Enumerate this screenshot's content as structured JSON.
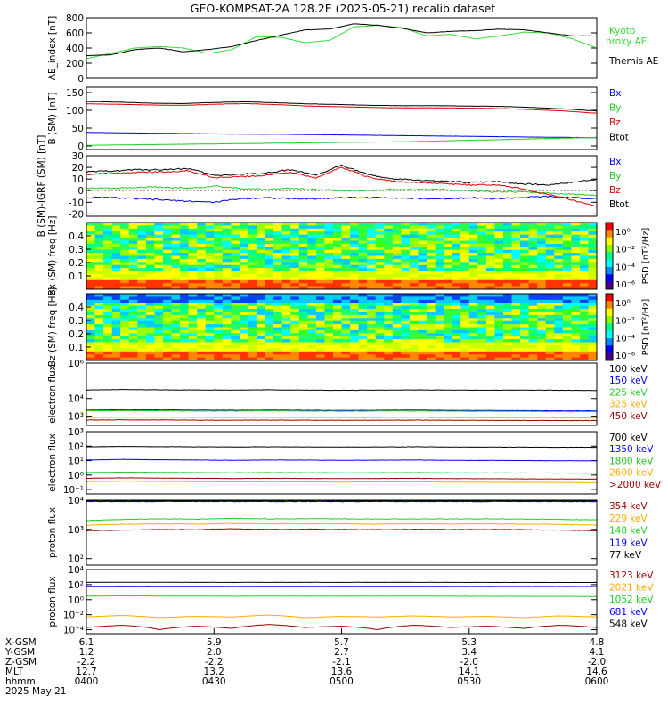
{
  "title": "GEO-KOMPSAT-2A 128.2E (2025-05-21) recalib dataset",
  "colors": {
    "black": "#000000",
    "blue": "#0000ff",
    "green": "#22cc22",
    "red": "#dd0000",
    "orange": "#ffaa00",
    "darkred": "#990000",
    "ae_green": "#33dd33"
  },
  "chart_data": [
    {
      "type": "line",
      "ylabel": "AE_index [nT]",
      "yticks": [
        "800",
        "600",
        "400",
        "200",
        "0"
      ],
      "ylim": [
        0,
        800
      ],
      "legend": [
        "Kyoto proxy AE",
        "Themis AE"
      ],
      "series": [
        {
          "name": "Kyoto proxy AE",
          "color": "ae_green",
          "values": [
            260,
            330,
            400,
            420,
            400,
            330,
            380,
            550,
            540,
            470,
            500,
            680,
            700,
            670,
            560,
            580,
            520,
            560,
            610,
            600,
            520,
            400
          ]
        },
        {
          "name": "Themis AE",
          "color": "black",
          "values": [
            300,
            310,
            380,
            400,
            350,
            380,
            420,
            500,
            570,
            640,
            650,
            720,
            700,
            660,
            600,
            620,
            630,
            650,
            640,
            600,
            560,
            560
          ]
        }
      ]
    },
    {
      "type": "line",
      "ylabel": "B (SM) [nT]",
      "yticks": [
        "150",
        "100",
        "50",
        "0"
      ],
      "ylim": [
        -10,
        165
      ],
      "legend": [
        "Bx",
        "By",
        "Bz",
        "Btot"
      ],
      "series": [
        {
          "name": "Bx",
          "color": "blue",
          "values": [
            38,
            37,
            36,
            35,
            34,
            33,
            33,
            32,
            31,
            30,
            29,
            28,
            27,
            26,
            25,
            24,
            23
          ]
        },
        {
          "name": "By",
          "color": "green",
          "values": [
            2,
            3,
            4,
            5,
            6,
            7,
            8,
            9,
            10,
            11,
            12,
            14,
            16,
            18,
            20,
            22,
            24
          ]
        },
        {
          "name": "Bz",
          "color": "red",
          "values": [
            118,
            117,
            115,
            114,
            117,
            119,
            116,
            112,
            110,
            108,
            107,
            107,
            106,
            105,
            102,
            98,
            92
          ]
        },
        {
          "name": "Btot",
          "color": "black",
          "values": [
            125,
            123,
            120,
            119,
            122,
            124,
            121,
            118,
            116,
            114,
            113,
            113,
            112,
            111,
            108,
            104,
            98
          ]
        }
      ]
    },
    {
      "type": "line",
      "ylabel": "B (SM)-IGRF (SM) [nT]",
      "yticks": [
        "30",
        "20",
        "10",
        "0",
        "-10",
        "-20"
      ],
      "ylim": [
        -22,
        30
      ],
      "legend": [
        "Bx",
        "By",
        "Bz",
        "Btot"
      ],
      "series": [
        {
          "name": "Bx",
          "color": "blue",
          "values": [
            -6,
            -6,
            -7,
            -8,
            -9,
            -10,
            -7,
            -6,
            -7,
            -7,
            -6,
            -6,
            -6,
            -7,
            -7,
            -6,
            -7,
            -6,
            -5,
            -6,
            -7
          ]
        },
        {
          "name": "By",
          "color": "green",
          "values": [
            2,
            2,
            3,
            3,
            2,
            4,
            2,
            1,
            2,
            1,
            0,
            0,
            1,
            1,
            1,
            0,
            -1,
            -1,
            -2,
            -3,
            -4
          ]
        },
        {
          "name": "Bz",
          "color": "red",
          "values": [
            14,
            15,
            16,
            16,
            17,
            11,
            12,
            13,
            16,
            11,
            20,
            12,
            8,
            7,
            6,
            5,
            5,
            2,
            -3,
            -8,
            -14
          ]
        },
        {
          "name": "Btot",
          "color": "black",
          "values": [
            16,
            17,
            18,
            18,
            19,
            13,
            14,
            15,
            18,
            13,
            22,
            14,
            10,
            9,
            8,
            7,
            8,
            6,
            5,
            7,
            10
          ]
        }
      ]
    },
    {
      "type": "heatmap",
      "ylabel": "Bx (SM) freq [Hz]",
      "yticks": [
        "0.4",
        "0.3",
        "0.2",
        "0.1"
      ],
      "ylim": [
        0,
        0.5
      ],
      "colorbar_label": "PSD [nT²/Hz]",
      "colorbar_ticks": [
        "10⁰",
        "10⁻²",
        "10⁻⁴",
        "10⁻⁶"
      ]
    },
    {
      "type": "heatmap",
      "ylabel": "Bz (SM) freq [Hz]",
      "yticks": [
        "0.4",
        "0.3",
        "0.2",
        "0.1"
      ],
      "ylim": [
        0,
        0.5
      ],
      "colorbar_label": "PSD [nT²/Hz]",
      "colorbar_ticks": [
        "10⁰",
        "10⁻²",
        "10⁻⁴",
        "10⁻⁶"
      ]
    },
    {
      "type": "line",
      "log": true,
      "ylabel": "electron flux",
      "yticks": [
        "10⁶",
        "10⁴",
        "10³"
      ],
      "ylim": [
        300,
        1000000
      ],
      "legend": [
        "100 keV",
        "150 keV",
        "225 keV",
        "325 keV",
        "450 keV"
      ],
      "series": [
        {
          "name": "100 keV",
          "color": "black",
          "values": [
            30000,
            32000,
            31000,
            30500,
            30000,
            31000,
            30000,
            29000,
            30000,
            30500,
            30000,
            29500,
            30000,
            29000,
            28500
          ]
        },
        {
          "name": "150 keV",
          "color": "blue",
          "values": [
            2200,
            2300,
            2250,
            2200,
            2150,
            2200,
            2150,
            2100,
            2150,
            2200,
            2100,
            2100,
            2050,
            2000,
            2000
          ]
        },
        {
          "name": "225 keV",
          "color": "green",
          "values": [
            2000,
            2050,
            2000,
            1950,
            1950,
            2000,
            1950,
            1900,
            1950,
            1950,
            1900,
            1900,
            1850,
            1800,
            1800
          ]
        },
        {
          "name": "325 keV",
          "color": "orange",
          "values": [
            850,
            880,
            870,
            860,
            850,
            860,
            850,
            840,
            850,
            860,
            840,
            830,
            830,
            820,
            820
          ]
        },
        {
          "name": "450 keV",
          "color": "darkred",
          "values": [
            600,
            620,
            610,
            600,
            590,
            600,
            595,
            585,
            595,
            600,
            585,
            580,
            575,
            570,
            565
          ]
        }
      ]
    },
    {
      "type": "line",
      "log": true,
      "ylabel": "electron flux",
      "yticks": [
        "10³",
        "10²",
        "10¹",
        "10⁰",
        "10⁻¹"
      ],
      "ylim": [
        0.05,
        1000
      ],
      "legend": [
        "700 keV",
        "1350 keV",
        "1800 keV",
        "2600 keV",
        ">2000 keV"
      ],
      "series": [
        {
          "name": "700 keV",
          "color": "black",
          "values": [
            90,
            95,
            92,
            90,
            88,
            90,
            89,
            87,
            88,
            90,
            87,
            86,
            85,
            84,
            84
          ]
        },
        {
          "name": "1350 keV",
          "color": "blue",
          "values": [
            11,
            12,
            11.5,
            11,
            10.5,
            11,
            10.8,
            10.5,
            10.7,
            11,
            10.5,
            10.3,
            10,
            9.8,
            9.6
          ]
        },
        {
          "name": "1800 keV",
          "color": "green",
          "values": [
            1.5,
            1.6,
            1.55,
            1.5,
            1.45,
            1.5,
            1.48,
            1.45,
            1.47,
            1.5,
            1.45,
            1.42,
            1.4,
            1.38,
            1.35
          ]
        },
        {
          "name": "2600 keV",
          "color": "orange",
          "values": [
            0.35,
            0.38,
            0.36,
            0.35,
            0.34,
            0.35,
            0.34,
            0.33,
            0.34,
            0.35,
            0.33,
            0.32,
            0.32,
            0.31,
            0.3
          ]
        },
        {
          "name": ">2000 keV",
          "color": "darkred",
          "values": [
            0.6,
            0.65,
            0.62,
            0.6,
            0.58,
            0.6,
            0.59,
            0.57,
            0.58,
            0.6,
            0.57,
            0.56,
            0.55,
            0.54,
            0.53
          ]
        }
      ]
    },
    {
      "type": "line",
      "log": true,
      "ylabel": "proton flux",
      "yticks": [
        "10⁴",
        "10³",
        "10²"
      ],
      "ylim": [
        60,
        10000
      ],
      "legend": [
        "354 keV",
        "229 keV",
        "148 keV",
        "119 keV",
        "77 keV"
      ],
      "series": [
        {
          "name": "354 keV",
          "color": "darkred",
          "values": [
            900,
            950,
            1000,
            980,
            1050,
            1000,
            1020,
            1000,
            980,
            1010,
            990,
            1000,
            980,
            950,
            900
          ]
        },
        {
          "name": "229 keV",
          "color": "orange",
          "values": [
            1400,
            1500,
            1550,
            1520,
            1600,
            1550,
            1560,
            1540,
            1520,
            1550,
            1530,
            1540,
            1520,
            1480,
            1400
          ]
        },
        {
          "name": "148 keV",
          "color": "green",
          "values": [
            2000,
            2200,
            2300,
            2250,
            2400,
            2300,
            2320,
            2300,
            2250,
            2300,
            2280,
            2290,
            2260,
            2200,
            2100
          ]
        },
        {
          "name": "119 keV",
          "color": "blue",
          "values": [
            9000,
            9000,
            9000,
            9000,
            9000,
            9000,
            9000,
            9000,
            9000,
            9000,
            9000,
            9000,
            9000,
            9000,
            9000
          ]
        },
        {
          "name": "77 keV",
          "color": "black",
          "values": [
            9400,
            9400,
            9400,
            9400,
            9400,
            9400,
            9400,
            9400,
            9400,
            9400,
            9400,
            9400,
            9400,
            9400,
            9400
          ]
        }
      ]
    },
    {
      "type": "line",
      "log": true,
      "ylabel": "proton flux",
      "yticks": [
        "10⁴",
        "10²",
        "10⁰",
        "10⁻²",
        "10⁻⁴"
      ],
      "ylim": [
        3e-05,
        10000
      ],
      "legend": [
        "3123 keV",
        "2021 keV",
        "1052 keV",
        "681 keV",
        "548 keV"
      ],
      "series": [
        {
          "name": "3123 keV",
          "color": "darkred",
          "values": [
            0.0002,
            0.0004,
            0.0001,
            0.0003,
            0.00015,
            0.0005,
            0.0002,
            0.0003,
            0.0001,
            0.0004,
            0.0002,
            0.0003,
            0.00015,
            0.0004,
            0.0002
          ]
        },
        {
          "name": "2021 keV",
          "color": "orange",
          "values": [
            0.005,
            0.008,
            0.004,
            0.006,
            0.005,
            0.009,
            0.004,
            0.006,
            0.005,
            0.007,
            0.005,
            0.006,
            0.004,
            0.007,
            0.005
          ]
        },
        {
          "name": "1052 keV",
          "color": "green",
          "values": [
            3,
            3.2,
            3.1,
            3,
            2.9,
            3,
            2.95,
            2.9,
            2.95,
            3,
            2.9,
            2.85,
            2.8,
            2.75,
            2.7
          ]
        },
        {
          "name": "681 keV",
          "color": "blue",
          "values": [
            60,
            62,
            61,
            60,
            59,
            60,
            59.5,
            59,
            59.5,
            60,
            59,
            58.5,
            58,
            57.5,
            57
          ]
        },
        {
          "name": "548 keV",
          "color": "black",
          "values": [
            200,
            205,
            202,
            200,
            198,
            200,
            199,
            197,
            199,
            200,
            197,
            196,
            195,
            194,
            193
          ]
        }
      ]
    }
  ],
  "x_axis": {
    "labels": [
      "X-GSM",
      "Y-GSM",
      "Z-GSM",
      "MLT",
      "hhmm"
    ],
    "date": "2025 May 21",
    "columns": [
      {
        "values": [
          "6.1",
          "1.2",
          "-2.2",
          "12.7",
          "0400"
        ]
      },
      {
        "values": [
          "5.9",
          "2.0",
          "-2.2",
          "13.2",
          "0430"
        ]
      },
      {
        "values": [
          "5.7",
          "2.7",
          "-2.1",
          "13.6",
          "0500"
        ]
      },
      {
        "values": [
          "5.3",
          "3.4",
          "-2.0",
          "14.1",
          "0530"
        ]
      },
      {
        "values": [
          "4.8",
          "4.1",
          "-2.0",
          "14.6",
          "0600"
        ]
      }
    ]
  }
}
